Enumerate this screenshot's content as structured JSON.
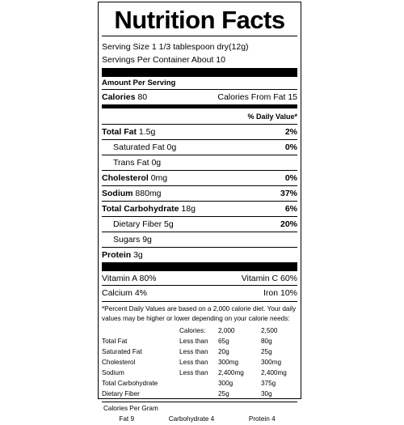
{
  "title": "Nutrition Facts",
  "serving_size": "Serving Size  1 1/3 tablespoon dry(12g)",
  "servings_per_container": "Servings Per Container About 10",
  "amount_per_serving": "Amount Per Serving",
  "calories": {
    "label": "Calories",
    "value": "80",
    "from_fat_label": "Calories From Fat",
    "from_fat_value": "15"
  },
  "daily_value_header": "% Daily Value*",
  "nutrients": [
    {
      "label": "Total Fat",
      "amount": "1.5g",
      "dv": "2%",
      "bold": true,
      "indent": false
    },
    {
      "label": "Saturated Fat",
      "amount": "0g",
      "dv": "0%",
      "bold": false,
      "indent": true
    },
    {
      "label": "Trans Fat",
      "amount": "0g",
      "dv": "",
      "bold": false,
      "indent": true
    },
    {
      "label": "Cholesterol",
      "amount": "0mg",
      "dv": "0%",
      "bold": true,
      "indent": false
    },
    {
      "label": "Sodium",
      "amount": "880mg",
      "dv": "37%",
      "bold": true,
      "indent": false
    },
    {
      "label": "Total Carbohydrate",
      "amount": "18g",
      "dv": "6%",
      "bold": true,
      "indent": false
    },
    {
      "label": "Dietary Fiber",
      "amount": "5g",
      "dv": "20%",
      "bold": false,
      "indent": true
    },
    {
      "label": "Sugars",
      "amount": "9g",
      "dv": "",
      "bold": false,
      "indent": true
    },
    {
      "label": "Protein",
      "amount": "3g",
      "dv": "",
      "bold": true,
      "indent": false
    }
  ],
  "vitamins": [
    {
      "left": "Vitamin A 80%",
      "right": "Vitamin C 60%"
    },
    {
      "left": "Calcium 4%",
      "right": "Iron 10%"
    }
  ],
  "footnote": "*Percent Daily Values are based on a 2,000 calorie diet. Your daily values may be higher or lower depending on your calorie needs:",
  "dv_table": {
    "header": [
      "",
      "Calories:",
      "2,000",
      "2,500"
    ],
    "rows": [
      [
        "Total Fat",
        "Less than",
        "65g",
        "80g"
      ],
      [
        "Saturated Fat",
        "Less than",
        "20g",
        "25g"
      ],
      [
        "Cholesterol",
        "Less than",
        "300mg",
        "300mg"
      ],
      [
        "Sodium",
        "Less than",
        "2,400mg",
        "2,400mg"
      ],
      [
        "Total Carbohydrate",
        "",
        "300g",
        "375g"
      ],
      [
        "Dietary Fiber",
        "",
        "25g",
        "30g"
      ]
    ]
  },
  "calories_per_gram": {
    "label": "Calories Per Gram",
    "items": [
      "Fat 9",
      "Carbohydrate 4",
      "Protein 4"
    ]
  }
}
